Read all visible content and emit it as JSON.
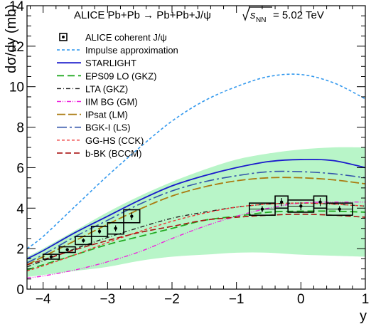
{
  "chart_data": {
    "type": "line",
    "title": "ALICE Pb+Pb → Pb+Pb+J/ψ",
    "energy_label": {
      "sqrt": "s",
      "sub": "NN",
      "rest": " = 5.02 TeV"
    },
    "xlabel": "y",
    "ylabel": "dσ/dy (mb)",
    "xlim": [
      -4.25,
      1.0
    ],
    "ylim": [
      0,
      14
    ],
    "x_ticks": [
      -4,
      -3,
      -2,
      -1,
      0,
      1
    ],
    "y_ticks": [
      0,
      2,
      4,
      6,
      8,
      10,
      12,
      14
    ],
    "grid": false,
    "legend_position": "top-left",
    "band": {
      "color": "#b8f5c8",
      "x": [
        -4.25,
        -4.0,
        -3.5,
        -3.0,
        -2.5,
        -2.0,
        -1.5,
        -1.0,
        -0.5,
        0.0,
        0.5,
        1.0
      ],
      "upper": [
        1.6,
        2.0,
        2.9,
        3.8,
        4.6,
        5.3,
        5.9,
        6.4,
        6.7,
        6.9,
        7.0,
        7.0
      ],
      "lower": [
        0.6,
        0.7,
        0.9,
        1.1,
        1.4,
        1.6,
        1.7,
        1.8,
        1.8,
        1.7,
        1.65,
        1.6
      ]
    },
    "data": {
      "name": "ALICE coherent J/ψ",
      "points": [
        {
          "x": -3.875,
          "y": 1.6,
          "xerr": 0.125,
          "stat": 0.08,
          "syst": 0.12
        },
        {
          "x": -3.625,
          "y": 1.95,
          "xerr": 0.125,
          "stat": 0.08,
          "syst": 0.14
        },
        {
          "x": -3.375,
          "y": 2.4,
          "xerr": 0.125,
          "stat": 0.1,
          "syst": 0.2
        },
        {
          "x": -3.125,
          "y": 2.85,
          "xerr": 0.125,
          "stat": 0.12,
          "syst": 0.25
        },
        {
          "x": -2.875,
          "y": 3.0,
          "xerr": 0.125,
          "stat": 0.15,
          "syst": 0.28
        },
        {
          "x": -2.625,
          "y": 3.6,
          "xerr": 0.125,
          "stat": 0.18,
          "syst": 0.32
        },
        {
          "x": -0.6,
          "y": 3.95,
          "xerr": 0.2,
          "stat": 0.15,
          "syst": 0.3
        },
        {
          "x": -0.3,
          "y": 4.3,
          "xerr": 0.1,
          "stat": 0.2,
          "syst": 0.3
        },
        {
          "x": 0.0,
          "y": 4.1,
          "xerr": 0.2,
          "stat": 0.2,
          "syst": 0.3
        },
        {
          "x": 0.3,
          "y": 4.3,
          "xerr": 0.1,
          "stat": 0.2,
          "syst": 0.3
        },
        {
          "x": 0.6,
          "y": 3.95,
          "xerr": 0.2,
          "stat": 0.15,
          "syst": 0.3
        }
      ]
    },
    "series": [
      {
        "name": "Impulse approximation",
        "color": "#3399ee",
        "dash": "4,3",
        "width": 1.6,
        "x": [
          -4.25,
          -4.0,
          -3.5,
          -3.0,
          -2.5,
          -2.0,
          -1.5,
          -1.0,
          -0.5,
          0.0,
          0.5,
          1.0
        ],
        "y": [
          2.0,
          2.6,
          4.1,
          5.6,
          7.0,
          8.3,
          9.3,
          10.0,
          10.5,
          10.6,
          10.2,
          9.4
        ]
      },
      {
        "name": "STARLIGHT",
        "color": "#1a1acc",
        "dash": "",
        "width": 1.8,
        "x": [
          -4.25,
          -4.0,
          -3.5,
          -3.0,
          -2.5,
          -2.0,
          -1.5,
          -1.0,
          -0.5,
          0.0,
          0.5,
          1.0
        ],
        "y": [
          1.5,
          1.9,
          2.8,
          3.6,
          4.4,
          5.1,
          5.6,
          6.0,
          6.3,
          6.4,
          6.35,
          6.0
        ]
      },
      {
        "name": "EPS09 LO (GKZ)",
        "color": "#22aa22",
        "dash": "10,5",
        "width": 1.8,
        "x": [
          -4.25,
          -4.0,
          -3.5,
          -3.0,
          -2.5,
          -2.0,
          -1.5,
          -1.0,
          -0.5,
          0.0,
          0.5,
          1.0
        ],
        "y": [
          0.95,
          1.2,
          1.7,
          2.2,
          2.6,
          3.0,
          3.4,
          3.6,
          3.8,
          3.85,
          3.85,
          3.8
        ]
      },
      {
        "name": "LTA (GKZ)",
        "color": "#222222",
        "dash": "6,3,1,3",
        "width": 1.4,
        "x": [
          -4.25,
          -4.0,
          -3.5,
          -3.0,
          -2.5,
          -2.0,
          -1.5,
          -1.0,
          -0.5,
          0.0,
          0.5,
          1.0
        ],
        "y": [
          1.1,
          1.4,
          2.0,
          2.55,
          3.05,
          3.5,
          3.8,
          4.05,
          4.2,
          4.25,
          4.2,
          4.1
        ]
      },
      {
        "name": "IIM BG (GM)",
        "color": "#ee22dd",
        "dash": "6,2,1,2,1,2",
        "width": 1.4,
        "x": [
          -4.25,
          -4.0,
          -3.5,
          -3.0,
          -2.5,
          -2.0,
          -1.5,
          -1.0,
          -0.5,
          0.0,
          0.5,
          1.0
        ],
        "y": [
          0.55,
          0.65,
          0.95,
          1.35,
          1.85,
          2.5,
          3.1,
          3.6,
          4.0,
          4.25,
          4.3,
          4.3
        ]
      },
      {
        "name": "IPsat (LM)",
        "color": "#aa7a10",
        "dash": "12,4",
        "width": 1.8,
        "x": [
          -4.25,
          -4.0,
          -3.5,
          -3.0,
          -2.5,
          -2.0,
          -1.5,
          -1.0,
          -0.5,
          0.0,
          0.5,
          1.0
        ],
        "y": [
          1.2,
          1.6,
          2.4,
          3.2,
          3.95,
          4.6,
          5.05,
          5.35,
          5.5,
          5.5,
          5.4,
          5.2
        ]
      },
      {
        "name": "BGK-I (LS)",
        "color": "#3355aa",
        "dash": "14,4,3,4",
        "width": 1.6,
        "x": [
          -4.25,
          -4.0,
          -3.5,
          -3.0,
          -2.5,
          -2.0,
          -1.5,
          -1.0,
          -0.5,
          0.0,
          0.5,
          1.0
        ],
        "y": [
          1.3,
          1.7,
          2.6,
          3.4,
          4.2,
          4.85,
          5.3,
          5.6,
          5.8,
          5.8,
          5.7,
          5.5
        ]
      },
      {
        "name": "GG-HS (CCK)",
        "color": "#ee3333",
        "dash": "4,3",
        "width": 1.4,
        "x": [
          -4.25,
          -4.0,
          -3.5,
          -3.0,
          -2.5,
          -2.0,
          -1.5,
          -1.0,
          -0.5,
          0.0,
          0.5,
          1.0
        ],
        "y": [
          0.9,
          1.15,
          1.7,
          2.3,
          2.85,
          3.35,
          3.75,
          4.05,
          4.2,
          4.25,
          4.2,
          4.1
        ]
      },
      {
        "name": "b-BK (BCCM)",
        "color": "#aa1111",
        "dash": "8,4",
        "width": 1.6,
        "x": [
          -4.25,
          -4.0,
          -3.5,
          -3.0,
          -2.5,
          -2.0,
          -1.5,
          -1.0,
          -0.5,
          0.0,
          0.5,
          1.0
        ],
        "y": [
          1.2,
          1.45,
          1.95,
          2.4,
          2.8,
          3.1,
          3.4,
          3.55,
          3.65,
          3.7,
          3.65,
          3.55
        ]
      }
    ]
  }
}
